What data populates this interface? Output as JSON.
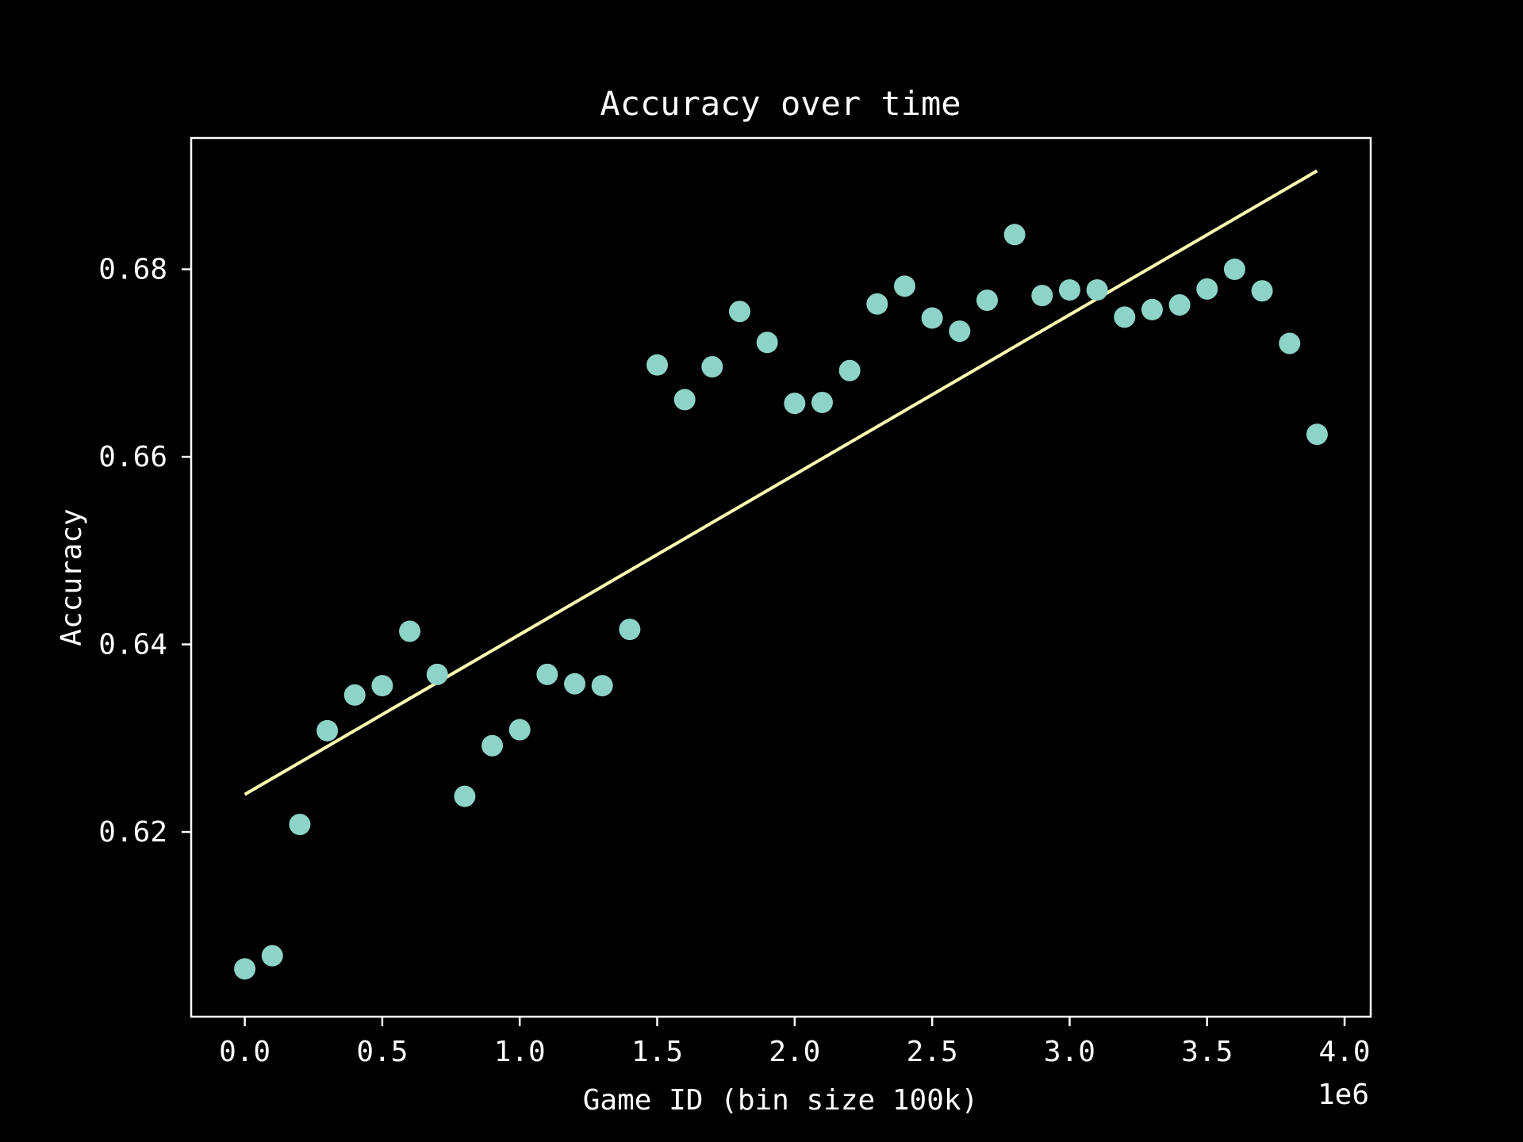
{
  "chart_data": {
    "type": "scatter",
    "title": "Accuracy over time",
    "xlabel": "Game ID (bin size 100k)",
    "ylabel": "Accuracy",
    "x_offset_label": "1e6",
    "xlim": [
      -0.195,
      4.095
    ],
    "ylim": [
      0.6003,
      0.694
    ],
    "x_ticks": [
      0.0,
      0.5,
      1.0,
      1.5,
      2.0,
      2.5,
      3.0,
      3.5,
      4.0
    ],
    "x_tick_labels": [
      "0.0",
      "0.5",
      "1.0",
      "1.5",
      "2.0",
      "2.5",
      "3.0",
      "3.5",
      "4.0"
    ],
    "y_ticks": [
      0.62,
      0.64,
      0.66,
      0.68
    ],
    "y_tick_labels": [
      "0.62",
      "0.64",
      "0.66",
      "0.68"
    ],
    "grid": false,
    "colors": {
      "background": "#000000",
      "axes": "#ffffff",
      "points": "#8dd3c7",
      "trend_line": "#ffffb3"
    },
    "series": [
      {
        "type": "scatter",
        "x": [
          0.0,
          0.1,
          0.2,
          0.3,
          0.4,
          0.5,
          0.6,
          0.7,
          0.8,
          0.9,
          1.0,
          1.1,
          1.2,
          1.3,
          1.4,
          1.5,
          1.6,
          1.7,
          1.8,
          1.9,
          2.0,
          2.1,
          2.2,
          2.3,
          2.4,
          2.5,
          2.6,
          2.7,
          2.8,
          2.9,
          3.0,
          3.1,
          3.2,
          3.3,
          3.4,
          3.5,
          3.6,
          3.7,
          3.8,
          3.9
        ],
        "y": [
          0.6054,
          0.6068,
          0.6208,
          0.6308,
          0.6346,
          0.6356,
          0.6414,
          0.6368,
          0.6238,
          0.6292,
          0.6309,
          0.6368,
          0.6358,
          0.6356,
          0.6416,
          0.6698,
          0.6661,
          0.6696,
          0.6755,
          0.6722,
          0.6657,
          0.6658,
          0.6692,
          0.6763,
          0.6782,
          0.6748,
          0.6734,
          0.6767,
          0.6837,
          0.6772,
          0.6778,
          0.6778,
          0.6749,
          0.6757,
          0.6762,
          0.6779,
          0.68,
          0.6777,
          0.6721,
          0.6624
        ]
      },
      {
        "type": "line",
        "x": [
          0.0,
          3.9
        ],
        "y": [
          0.624,
          0.6905
        ]
      }
    ]
  }
}
